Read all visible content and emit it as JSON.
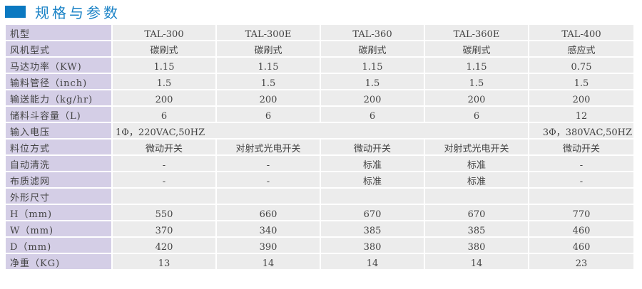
{
  "title": "规格与参数",
  "colors": {
    "accent": "#0b79c1",
    "label_bg": "#d4cee6",
    "cell_bg": "#ececec"
  },
  "rows": [
    {
      "label": "机型",
      "values": [
        "TAL-300",
        "TAL-300E",
        "TAL-360",
        "TAL-360E",
        "TAL-400"
      ]
    },
    {
      "label": "风机型式",
      "values": [
        "碳刷式",
        "碳刷式",
        "碳刷式",
        "碳刷式",
        "感应式"
      ]
    },
    {
      "label": "马达功率（KW)",
      "values": [
        "1.15",
        "1.15",
        "1.15",
        "1.15",
        "0.75"
      ]
    },
    {
      "label": "输料管径（inch)",
      "values": [
        "1.5",
        "1.5",
        "1.5",
        "1.5",
        "1.5"
      ]
    },
    {
      "label": "输送能力（kg/hr)",
      "values": [
        "200",
        "200",
        "200",
        "200",
        "200"
      ]
    },
    {
      "label": "储料斗容量（L)",
      "values": [
        "6",
        "6",
        "6",
        "6",
        "12"
      ]
    },
    {
      "label": "输入电压",
      "values": [
        "1Φ，220VAC,50HZ",
        "3Φ，380VAC,50HZ"
      ]
    },
    {
      "label": "料位方式",
      "values": [
        "微动开关",
        "对射式光电开关",
        "微动开关",
        "对射式光电开关",
        "微动开关"
      ]
    },
    {
      "label": "自动清洗",
      "values": [
        "-",
        "-",
        "标准",
        "标准",
        "-"
      ]
    },
    {
      "label": "布质滤网",
      "values": [
        "-",
        "-",
        "标准",
        "标准",
        "-"
      ]
    },
    {
      "label": "外形尺寸",
      "values": [
        "",
        "",
        "",
        "",
        ""
      ]
    },
    {
      "label": "H（mm)",
      "values": [
        "550",
        "660",
        "670",
        "670",
        "770"
      ]
    },
    {
      "label": "W（mm)",
      "values": [
        "370",
        "340",
        "385",
        "385",
        "460"
      ]
    },
    {
      "label": "D（mm)",
      "values": [
        "420",
        "390",
        "380",
        "380",
        "460"
      ]
    },
    {
      "label": "净重（KG)",
      "values": [
        "13",
        "14",
        "14",
        "14",
        "23"
      ]
    }
  ]
}
